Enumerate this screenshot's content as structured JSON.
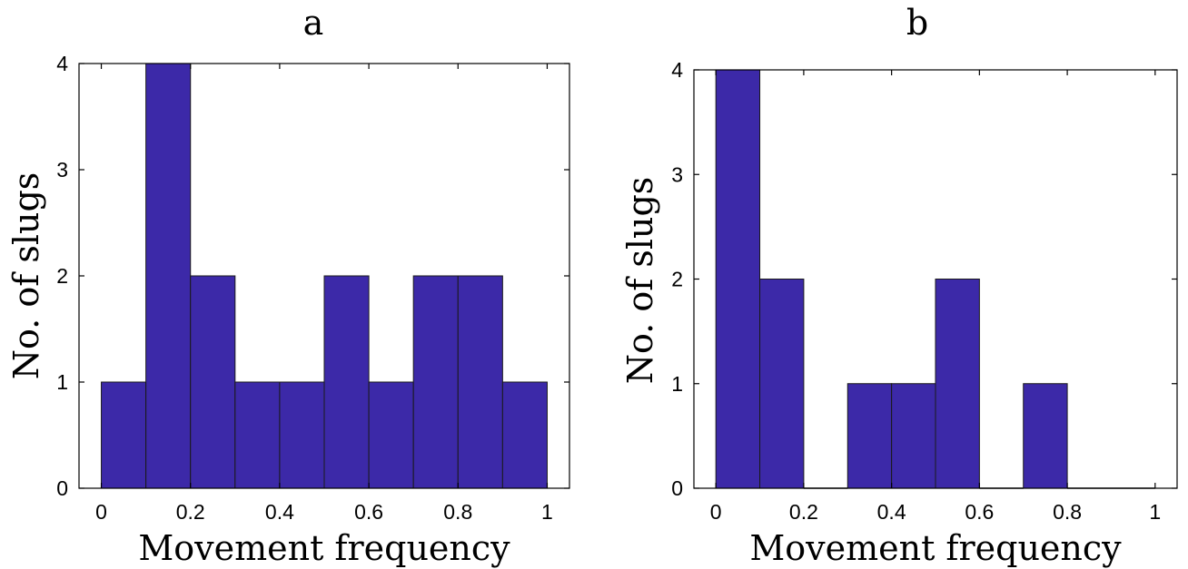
{
  "chart_data": [
    {
      "type": "bar",
      "title": "a",
      "xlabel": "Movement frequency",
      "ylabel": "No. of slugs",
      "bin_edges": [
        0,
        0.1,
        0.2,
        0.3,
        0.4,
        0.5,
        0.6,
        0.7,
        0.8,
        0.9,
        1.0
      ],
      "values": [
        1,
        4,
        2,
        1,
        1,
        2,
        1,
        2,
        2,
        1
      ],
      "xlim": [
        -0.05,
        1.05
      ],
      "ylim": [
        0,
        4
      ],
      "xticks": [
        "0",
        "0.2",
        "0.4",
        "0.6",
        "0.8",
        "1"
      ],
      "yticks": [
        "0",
        "1",
        "2",
        "3",
        "4"
      ],
      "color": "#3c29a8",
      "grid": false
    },
    {
      "type": "bar",
      "title": "b",
      "xlabel": "Movement frequency",
      "ylabel": "No. of slugs",
      "bin_edges": [
        0,
        0.1,
        0.2,
        0.3,
        0.4,
        0.5,
        0.6,
        0.7,
        0.8,
        0.9,
        1.0
      ],
      "values": [
        4,
        2,
        0,
        1,
        1,
        2,
        0,
        1,
        0,
        0
      ],
      "xlim": [
        -0.05,
        1.05
      ],
      "ylim": [
        0,
        4
      ],
      "xticks": [
        "0",
        "0.2",
        "0.4",
        "0.6",
        "0.8",
        "1"
      ],
      "yticks": [
        "0",
        "1",
        "2",
        "3",
        "4"
      ],
      "color": "#3c29a8",
      "grid": false
    }
  ]
}
